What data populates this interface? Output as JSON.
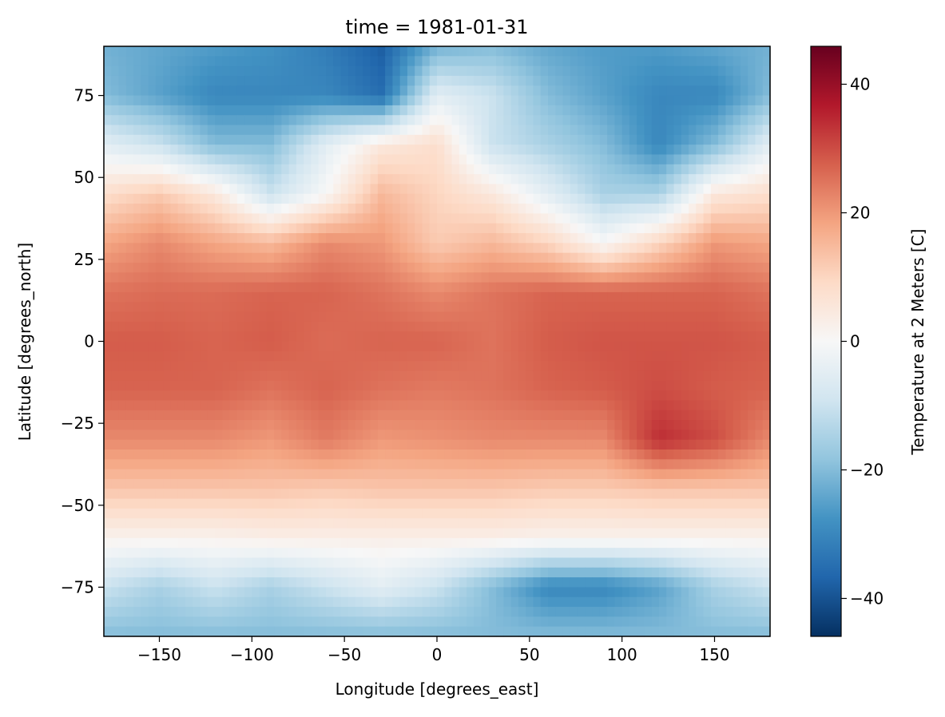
{
  "chart_data": {
    "type": "heatmap",
    "title": "time = 1981-01-31",
    "xlabel": "Longitude [degrees_east]",
    "ylabel": "Latitude [degrees_north]",
    "xlim": [
      -180,
      180
    ],
    "ylim": [
      -90,
      90
    ],
    "xticks": [
      -150,
      -100,
      -50,
      0,
      50,
      100,
      150
    ],
    "xtick_labels": [
      "−150",
      "−100",
      "−50",
      "0",
      "50",
      "100",
      "150"
    ],
    "yticks": [
      75,
      50,
      25,
      0,
      -25,
      -50,
      -75
    ],
    "ytick_labels": [
      "75",
      "50",
      "25",
      "0",
      "−25",
      "−50",
      "−75"
    ],
    "colorbar": {
      "label": "Temperature at 2 Meters [C]",
      "colormap": "RdBu_r",
      "vmin": -45.9,
      "vmax": 45.9,
      "ticks": [
        40,
        20,
        0,
        -20,
        -40
      ],
      "tick_labels": [
        "40",
        "20",
        "0",
        "−20",
        "−40"
      ],
      "colors": [
        "#053061",
        "#2166ac",
        "#4393c3",
        "#92c5de",
        "#d1e5f0",
        "#f7f7f7",
        "#fddbc7",
        "#f4a582",
        "#d6604d",
        "#b2182b",
        "#67001f"
      ]
    },
    "grid_lats": [
      90,
      75,
      60,
      45,
      30,
      15,
      0,
      -15,
      -30,
      -45,
      -60,
      -75,
      -90
    ],
    "grid_lons": [
      -180,
      -150,
      -120,
      -90,
      -60,
      -30,
      0,
      30,
      60,
      90,
      120,
      150,
      180
    ],
    "values": [
      [
        -22,
        -24,
        -26,
        -28,
        -32,
        -38,
        -22,
        -20,
        -24,
        -26,
        -26,
        -24,
        -22
      ],
      [
        -20,
        -25,
        -30,
        -30,
        -30,
        -35,
        -5,
        -10,
        -20,
        -25,
        -30,
        -30,
        -20
      ],
      [
        -5,
        -10,
        -20,
        -20,
        -5,
        5,
        8,
        -10,
        -15,
        -20,
        -30,
        -20,
        -5
      ],
      [
        8,
        12,
        5,
        -10,
        0,
        15,
        10,
        5,
        -5,
        -15,
        -15,
        5,
        8
      ],
      [
        18,
        22,
        18,
        15,
        22,
        20,
        12,
        15,
        10,
        0,
        10,
        20,
        18
      ],
      [
        25,
        26,
        26,
        27,
        27,
        25,
        22,
        25,
        27,
        27,
        27,
        27,
        25
      ],
      [
        28,
        28,
        27,
        28,
        26,
        27,
        27,
        25,
        28,
        29,
        29,
        29,
        28
      ],
      [
        27,
        27,
        27,
        25,
        27,
        25,
        24,
        25,
        27,
        28,
        30,
        28,
        27
      ],
      [
        22,
        22,
        22,
        20,
        24,
        20,
        21,
        22,
        22,
        22,
        34,
        30,
        22
      ],
      [
        13,
        13,
        13,
        13,
        12,
        13,
        13,
        13,
        12,
        12,
        13,
        13,
        13
      ],
      [
        2,
        2,
        2,
        3,
        3,
        3,
        3,
        3,
        2,
        2,
        2,
        2,
        2
      ],
      [
        -10,
        -15,
        -10,
        -15,
        -10,
        -5,
        -10,
        -20,
        -30,
        -30,
        -25,
        -15,
        -10
      ],
      [
        -20,
        -20,
        -20,
        -20,
        -20,
        -20,
        -20,
        -20,
        -20,
        -20,
        -20,
        -20,
        -20
      ]
    ]
  }
}
